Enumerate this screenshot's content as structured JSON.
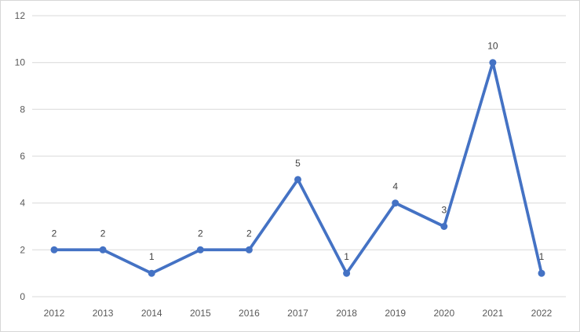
{
  "chart_data": {
    "type": "line",
    "title": "",
    "xlabel": "",
    "ylabel": "",
    "categories": [
      "2012",
      "2013",
      "2014",
      "2015",
      "2016",
      "2017",
      "2018",
      "2019",
      "2020",
      "2021",
      "2022"
    ],
    "values": [
      2,
      2,
      1,
      2,
      2,
      5,
      1,
      4,
      3,
      10,
      1
    ],
    "data_labels_visible": true,
    "ylim": [
      0,
      12
    ],
    "yticks": [
      0,
      2,
      4,
      6,
      8,
      10,
      12
    ],
    "grid": "horizontal",
    "legend_position": "none",
    "marker": "circle",
    "colors": {
      "series": "#4472C4",
      "gridline": "#D9D9D9",
      "tick_label": "#595959",
      "data_label": "#404040",
      "frame_border": "#D7D7D7",
      "background": "#FFFFFF"
    }
  }
}
